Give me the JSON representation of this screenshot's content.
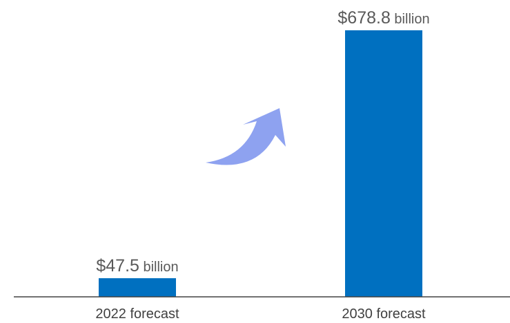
{
  "chart_data": {
    "type": "bar",
    "categories": [
      "2022 forecast",
      "2030 forecast"
    ],
    "values": [
      47.5,
      678.8
    ],
    "data_labels": [
      {
        "amount": "$47.5",
        "unit": "billion"
      },
      {
        "amount": "$678.8",
        "unit": "billion"
      }
    ],
    "ylim": [
      0,
      678.8
    ],
    "grid": false,
    "legend": "none",
    "annotation": "upward curved arrow"
  },
  "colors": {
    "bar": "#0070C0",
    "arrow": "#8EA2F0",
    "axis": "#404040"
  }
}
